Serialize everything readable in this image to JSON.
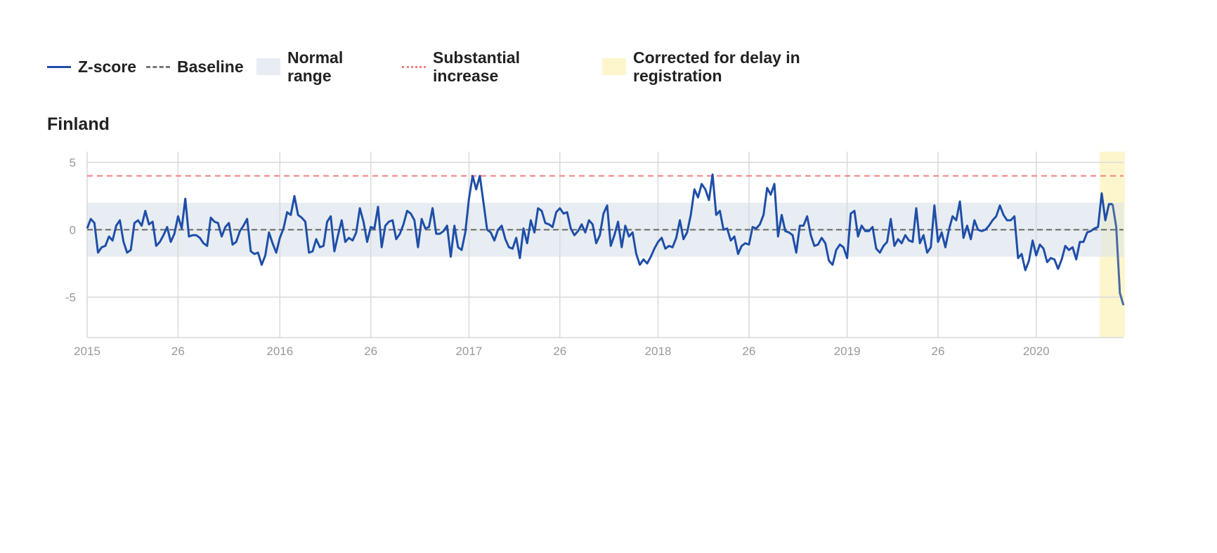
{
  "legend": {
    "zscore": "Z-score",
    "baseline": "Baseline",
    "normal_range": [
      "Normal",
      "range"
    ],
    "substantial_increase": [
      "Substantial",
      "increase"
    ],
    "corrected": [
      "Corrected for delay in",
      "registration"
    ]
  },
  "colors": {
    "line": "#1f4ea8",
    "line_corrected": "#4a6aa0",
    "baseline": "#666666",
    "threshold": "#f57f7f",
    "normal_band": "#e7edf2",
    "corrected_band": "#fdf6cd",
    "grid": "#d9d9d9"
  },
  "chart_data": {
    "type": "line",
    "title": "Finland",
    "xlabel": "",
    "ylabel": "",
    "x_ticks": [
      {
        "label": "2015",
        "x": 0
      },
      {
        "label": "26",
        "x": 25
      },
      {
        "label": "2016",
        "x": 53
      },
      {
        "label": "26",
        "x": 78
      },
      {
        "label": "2017",
        "x": 105
      },
      {
        "label": "26",
        "x": 130
      },
      {
        "label": "2018",
        "x": 157
      },
      {
        "label": "26",
        "x": 182
      },
      {
        "label": "2019",
        "x": 209
      },
      {
        "label": "26",
        "x": 234
      },
      {
        "label": "2020",
        "x": 261
      }
    ],
    "y_ticks": [
      5,
      0,
      -5
    ],
    "xlim": [
      0,
      282.5
    ],
    "ylim": [
      -8,
      5.8
    ],
    "baseline": 0,
    "normal_range": [
      -2,
      2
    ],
    "substantial_increase": 4,
    "corrected_from_week_x": 279,
    "grid": true,
    "series": [
      {
        "values": [
          0.1,
          0.8,
          0.5,
          -1.7,
          -1.3,
          -1.2,
          -0.5,
          -0.8,
          0.3,
          0.7,
          -0.9,
          -1.7,
          -1.5,
          0.5,
          0.7,
          0.3,
          1.4,
          0.4,
          0.6,
          -1.2,
          -0.9,
          -0.4,
          0.2,
          -0.9,
          -0.3,
          1.0,
          0.1,
          2.3,
          -0.5,
          -0.4,
          -0.4,
          -0.6,
          -1.0,
          -1.2,
          0.9,
          0.6,
          0.5,
          -0.5,
          0.2,
          0.5,
          -1.1,
          -0.9,
          -0.1,
          0.3,
          0.8,
          -1.6,
          -1.8,
          -1.7,
          -2.6,
          -1.9,
          -0.2,
          -1.0,
          -1.7,
          -0.6,
          0.1,
          1.3,
          1.1,
          2.5,
          1.1,
          0.9,
          0.6,
          -1.7,
          -1.6,
          -0.7,
          -1.3,
          -1.2,
          0.6,
          1.0,
          -1.6,
          -0.4,
          0.7,
          -0.9,
          -0.6,
          -0.8,
          -0.2,
          1.6,
          0.6,
          -0.9,
          0.2,
          0.1,
          1.7,
          -1.3,
          0.3,
          0.6,
          0.7,
          -0.7,
          -0.3,
          0.4,
          1.4,
          1.2,
          0.7,
          -1.3,
          0.8,
          0.1,
          0.2,
          1.6,
          -0.3,
          -0.3,
          -0.1,
          0.3,
          -2.0,
          0.3,
          -1.3,
          -1.5,
          -0.2,
          2.3,
          4.0,
          3.0,
          4.0,
          2.0,
          0.0,
          -0.2,
          -0.8,
          0.0,
          0.3,
          -0.7,
          -1.3,
          -1.4,
          -0.6,
          -2.1,
          0.1,
          -1.0,
          0.7,
          -0.2,
          1.6,
          1.4,
          0.5,
          0.4,
          0.2,
          1.3,
          1.6,
          1.2,
          1.3,
          0.1,
          -0.4,
          -0.1,
          0.4,
          -0.2,
          0.7,
          0.4,
          -1.0,
          -0.4,
          1.2,
          1.8,
          -1.2,
          -0.4,
          0.6,
          -1.3,
          0.3,
          -0.5,
          -0.2,
          -1.8,
          -2.6,
          -2.2,
          -2.5,
          -2.0,
          -1.4,
          -0.9,
          -0.6,
          -1.4,
          -1.2,
          -1.3,
          -0.6,
          0.7,
          -0.7,
          -0.2,
          1.1,
          3.0,
          2.4,
          3.4,
          3.0,
          2.2,
          4.1,
          1.1,
          1.4,
          0.0,
          0.1,
          -0.8,
          -0.5,
          -1.8,
          -1.2,
          -1.0,
          -1.1,
          0.2,
          0.1,
          0.4,
          1.1,
          3.1,
          2.6,
          3.4,
          -0.5,
          1.1,
          -0.1,
          -0.2,
          -0.4,
          -1.7,
          0.3,
          0.3,
          1.0,
          -0.4,
          -1.2,
          -1.1,
          -0.6,
          -1.0,
          -2.3,
          -2.6,
          -1.5,
          -1.1,
          -1.3,
          -2.1,
          1.2,
          1.4,
          -0.5,
          0.3,
          -0.1,
          -0.1,
          0.2,
          -1.4,
          -1.7,
          -1.2,
          -0.9,
          0.8,
          -1.2,
          -0.7,
          -1.0,
          -0.4,
          -0.8,
          -0.9,
          1.6,
          -1.0,
          -0.4,
          -1.7,
          -1.3,
          1.8,
          -0.9,
          -0.2,
          -1.3,
          0.0,
          1.0,
          0.7,
          2.1,
          -0.6,
          0.3,
          -0.7,
          0.7,
          0.0,
          -0.1,
          0.0,
          0.3,
          0.7,
          1.0,
          1.8,
          1.1,
          0.7,
          0.7,
          1.0,
          -2.1,
          -1.8,
          -3.0,
          -2.3,
          -0.8,
          -1.9,
          -1.1,
          -1.4,
          -2.4,
          -2.1,
          -2.2,
          -2.9,
          -2.2,
          -1.2,
          -1.5,
          -1.3,
          -2.2,
          -0.9,
          -0.9,
          -0.2,
          -0.1,
          0.1,
          0.2,
          2.7,
          0.7,
          1.9,
          1.9
        ],
        "corrected_values": [
          1.9,
          0.2,
          -4.7,
          -5.6
        ]
      }
    ]
  }
}
